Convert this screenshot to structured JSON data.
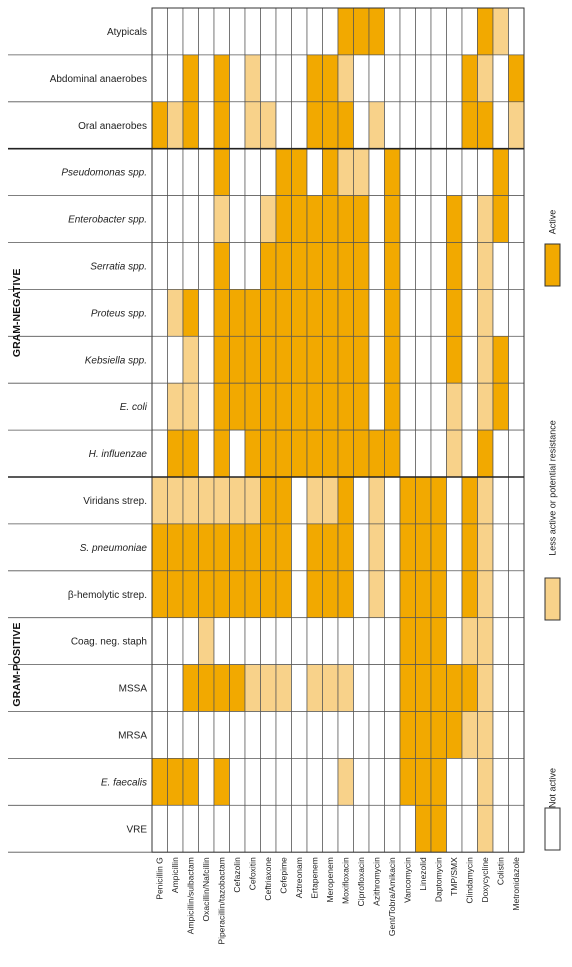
{
  "chart_data": {
    "type": "heatmap",
    "colors": {
      "active": "#F2A900",
      "less_active": "#F8D28A",
      "not_active": "#FFFFFF"
    },
    "legend": [
      {
        "key": 2,
        "label": "Active"
      },
      {
        "key": 1,
        "label": "Less active or potential resistance"
      },
      {
        "key": 0,
        "label": "Not active"
      }
    ],
    "legend_placement": "right",
    "groups": [
      {
        "label": "GRAM-NEGATIVE",
        "first_row": 3,
        "last_row": 9
      },
      {
        "label": "GRAM-POSITIVE",
        "first_row": 10,
        "last_row": 17
      }
    ],
    "columns": [
      "Penicillin G",
      "Ampicillin",
      "Ampicillin/sulbactam",
      "Oxacillin/Nafcillin",
      "Piperacillin/tazobactam",
      "Cefazolin",
      "Cefoxitin",
      "Ceftriaxone",
      "Cefepime",
      "Aztreonam",
      "Ertapenem",
      "Meropenem",
      "Moxifloxacin",
      "Ciprofloxacin",
      "Azithromycin",
      "Gent/Tobra/Amikacin",
      "Vancomycin",
      "Linezolid",
      "Daptomycin",
      "TMP/SMX",
      "Clindamycin",
      "Doxycycline",
      "Colistin",
      "Metronidazole"
    ],
    "rows": [
      {
        "label": "Atypicals",
        "italic": false,
        "values": [
          0,
          0,
          0,
          0,
          0,
          0,
          0,
          0,
          0,
          0,
          0,
          0,
          2,
          2,
          2,
          0,
          0,
          0,
          0,
          0,
          0,
          2,
          1,
          0
        ]
      },
      {
        "label": "Abdominal anaerobes",
        "italic": false,
        "values": [
          0,
          0,
          2,
          0,
          2,
          0,
          1,
          0,
          0,
          0,
          2,
          2,
          1,
          0,
          0,
          0,
          0,
          0,
          0,
          0,
          2,
          1,
          0,
          2
        ]
      },
      {
        "label": "Oral anaerobes",
        "italic": false,
        "values": [
          2,
          1,
          2,
          0,
          2,
          0,
          1,
          1,
          0,
          0,
          2,
          2,
          2,
          0,
          1,
          0,
          0,
          0,
          0,
          0,
          2,
          2,
          0,
          1
        ]
      },
      {
        "label": "Pseudomonas spp.",
        "italic": true,
        "values": [
          0,
          0,
          0,
          0,
          2,
          0,
          0,
          0,
          2,
          2,
          0,
          2,
          1,
          1,
          0,
          2,
          0,
          0,
          0,
          0,
          0,
          0,
          2,
          0
        ]
      },
      {
        "label": "Enterobacter spp.",
        "italic": true,
        "values": [
          0,
          0,
          0,
          0,
          1,
          0,
          0,
          1,
          2,
          2,
          2,
          2,
          2,
          2,
          0,
          2,
          0,
          0,
          0,
          2,
          0,
          1,
          2,
          0
        ]
      },
      {
        "label": "Serratia spp.",
        "italic": true,
        "values": [
          0,
          0,
          0,
          0,
          2,
          0,
          0,
          2,
          2,
          2,
          2,
          2,
          2,
          2,
          0,
          2,
          0,
          0,
          0,
          2,
          0,
          1,
          0,
          0
        ]
      },
      {
        "label": "Proteus spp.",
        "italic": true,
        "values": [
          0,
          1,
          2,
          0,
          2,
          2,
          2,
          2,
          2,
          2,
          2,
          2,
          2,
          2,
          0,
          2,
          0,
          0,
          0,
          2,
          0,
          1,
          0,
          0
        ]
      },
      {
        "label": "Kebsiella spp.",
        "italic": true,
        "values": [
          0,
          0,
          1,
          0,
          2,
          2,
          2,
          2,
          2,
          2,
          2,
          2,
          2,
          2,
          0,
          2,
          0,
          0,
          0,
          2,
          0,
          1,
          2,
          0
        ]
      },
      {
        "label": "E. coli",
        "italic": true,
        "values": [
          0,
          1,
          1,
          0,
          2,
          2,
          2,
          2,
          2,
          2,
          2,
          2,
          2,
          2,
          0,
          2,
          0,
          0,
          0,
          1,
          0,
          1,
          2,
          0
        ]
      },
      {
        "label": "H. influenzae",
        "italic": true,
        "values": [
          0,
          2,
          2,
          0,
          2,
          0,
          2,
          2,
          2,
          2,
          2,
          2,
          2,
          2,
          2,
          2,
          0,
          0,
          0,
          1,
          0,
          2,
          0,
          0
        ]
      },
      {
        "label": "Viridans strep.",
        "italic": false,
        "values": [
          1,
          1,
          1,
          1,
          1,
          1,
          1,
          2,
          2,
          0,
          1,
          1,
          2,
          0,
          1,
          0,
          2,
          2,
          2,
          0,
          2,
          1,
          0,
          0
        ]
      },
      {
        "label": "S. pneumoniae",
        "italic": true,
        "values": [
          2,
          2,
          2,
          2,
          2,
          2,
          2,
          2,
          2,
          0,
          2,
          2,
          2,
          0,
          1,
          0,
          2,
          2,
          2,
          0,
          2,
          1,
          0,
          0
        ]
      },
      {
        "label": "β-hemolytic strep.",
        "italic": false,
        "values": [
          2,
          2,
          2,
          2,
          2,
          2,
          2,
          2,
          2,
          0,
          2,
          2,
          2,
          0,
          1,
          0,
          2,
          2,
          2,
          0,
          2,
          1,
          0,
          0
        ]
      },
      {
        "label": "Coag. neg. staph",
        "italic": false,
        "values": [
          0,
          0,
          0,
          1,
          0,
          0,
          0,
          0,
          0,
          0,
          0,
          0,
          0,
          0,
          0,
          0,
          2,
          2,
          2,
          0,
          1,
          1,
          0,
          0
        ]
      },
      {
        "label": "MSSA",
        "italic": false,
        "values": [
          0,
          0,
          2,
          2,
          2,
          2,
          1,
          1,
          1,
          0,
          1,
          1,
          1,
          0,
          0,
          0,
          2,
          2,
          2,
          2,
          2,
          1,
          0,
          0
        ]
      },
      {
        "label": "MRSA",
        "italic": false,
        "values": [
          0,
          0,
          0,
          0,
          0,
          0,
          0,
          0,
          0,
          0,
          0,
          0,
          0,
          0,
          0,
          0,
          2,
          2,
          2,
          2,
          1,
          1,
          0,
          0
        ]
      },
      {
        "label": "E. faecalis",
        "italic": true,
        "values": [
          2,
          2,
          2,
          0,
          2,
          0,
          0,
          0,
          0,
          0,
          0,
          0,
          1,
          0,
          0,
          0,
          2,
          2,
          2,
          0,
          0,
          1,
          0,
          0
        ]
      },
      {
        "label": "VRE",
        "italic": false,
        "values": [
          0,
          0,
          0,
          0,
          0,
          0,
          0,
          0,
          0,
          0,
          0,
          0,
          0,
          0,
          0,
          0,
          0,
          2,
          2,
          0,
          0,
          1,
          0,
          0
        ]
      }
    ]
  }
}
